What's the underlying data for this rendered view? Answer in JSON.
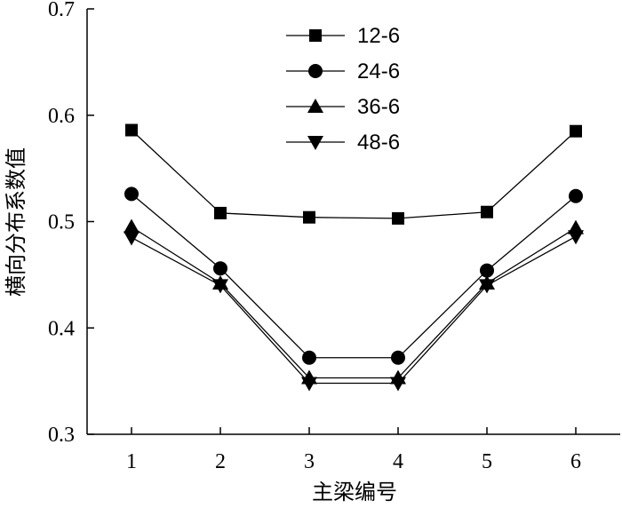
{
  "chart_data": {
    "type": "line",
    "xlabel": "主梁编号",
    "ylabel": "横向分布系数值",
    "ylim": [
      0.3,
      0.7
    ],
    "xlim": [
      0.5,
      6.5
    ],
    "x": [
      1,
      2,
      3,
      4,
      5,
      6
    ],
    "x_ticks": [
      "1",
      "2",
      "3",
      "4",
      "5",
      "6"
    ],
    "y_ticks": [
      "0.3",
      "0.4",
      "0.5",
      "0.6",
      "0.7"
    ],
    "grid": false,
    "legend_position": "top-center",
    "series": [
      {
        "name": "12-6",
        "marker": "square",
        "color": "#000000",
        "values": [
          0.586,
          0.508,
          0.504,
          0.503,
          0.509,
          0.585
        ]
      },
      {
        "name": "24-6",
        "marker": "circle",
        "color": "#000000",
        "values": [
          0.526,
          0.456,
          0.372,
          0.372,
          0.454,
          0.524
        ]
      },
      {
        "name": "36-6",
        "marker": "triangle-up",
        "color": "#000000",
        "values": [
          0.495,
          0.442,
          0.353,
          0.353,
          0.442,
          0.494
        ]
      },
      {
        "name": "48-6",
        "marker": "triangle-down",
        "color": "#000000",
        "values": [
          0.485,
          0.44,
          0.348,
          0.348,
          0.44,
          0.486
        ]
      }
    ]
  }
}
